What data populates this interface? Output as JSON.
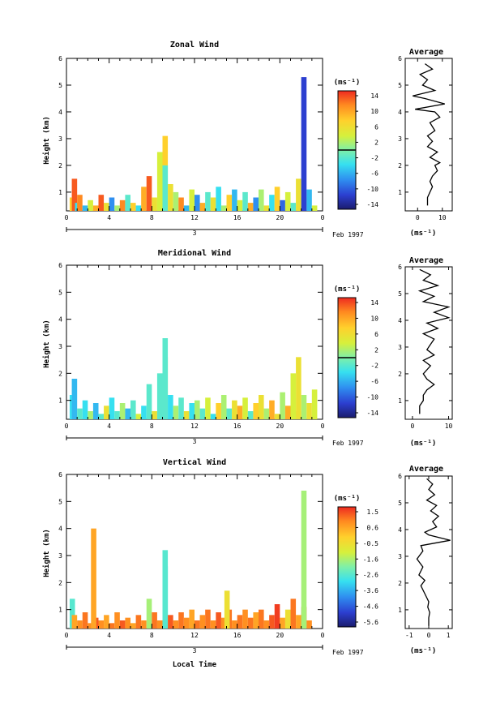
{
  "chart_data": [
    {
      "type": "heatmap",
      "title": "Zonal Wind",
      "xlabel": "",
      "ylabel": "Height (km)",
      "xticks": [
        "0",
        "4",
        "8",
        "12",
        "16",
        "20",
        "0"
      ],
      "xlim": [
        0,
        24
      ],
      "yticks": [
        "1",
        "2",
        "3",
        "4",
        "5",
        "6"
      ],
      "ylim": [
        0.3,
        6
      ],
      "date_label": "3",
      "month_label": "Feb 1997",
      "colorbar": {
        "unit": "(ms⁻¹)",
        "ticks": [
          "14",
          "10",
          "6",
          "2",
          "-2",
          "-6",
          "-10",
          "-14"
        ],
        "range": [
          -16,
          16
        ],
        "zero_line": 0
      },
      "average": {
        "title": "Average",
        "xlabel": "(ms⁻¹)",
        "xticks": [
          "0",
          "10"
        ],
        "xtick_values": [
          0,
          10
        ],
        "xlim": [
          -5,
          14
        ],
        "yticks": [
          "1",
          "2",
          "3",
          "4",
          "5",
          "6"
        ],
        "ylim": [
          0.3,
          6
        ],
        "profile": [
          [
            4,
            0.5
          ],
          [
            4,
            0.8
          ],
          [
            5,
            1.0
          ],
          [
            6,
            1.2
          ],
          [
            5,
            1.4
          ],
          [
            6,
            1.6
          ],
          [
            8,
            1.8
          ],
          [
            7,
            2.0
          ],
          [
            9,
            2.1
          ],
          [
            5,
            2.3
          ],
          [
            8,
            2.5
          ],
          [
            4,
            2.7
          ],
          [
            6,
            2.9
          ],
          [
            4,
            3.1
          ],
          [
            7,
            3.3
          ],
          [
            5,
            3.6
          ],
          [
            9,
            3.8
          ],
          [
            7,
            4.0
          ],
          [
            -1,
            4.1
          ],
          [
            11,
            4.3
          ],
          [
            3,
            4.5
          ],
          [
            -2,
            4.6
          ],
          [
            7,
            4.8
          ],
          [
            2,
            5.0
          ],
          [
            4,
            5.2
          ],
          [
            1,
            5.4
          ],
          [
            6,
            5.6
          ],
          [
            3,
            5.8
          ]
        ]
      },
      "cells": [
        [
          0.3,
          0.8,
          8
        ],
        [
          0.5,
          1.5,
          14
        ],
        [
          0.8,
          0.6,
          -4
        ],
        [
          1,
          0.9,
          12
        ],
        [
          1.5,
          0.5,
          -6
        ],
        [
          2,
          0.7,
          4
        ],
        [
          2.5,
          0.5,
          10
        ],
        [
          3,
          0.9,
          14
        ],
        [
          3.5,
          0.6,
          6
        ],
        [
          4,
          0.8,
          -8
        ],
        [
          4.5,
          0.5,
          2
        ],
        [
          5,
          0.7,
          12
        ],
        [
          5.5,
          0.9,
          -2
        ],
        [
          6,
          0.6,
          8
        ],
        [
          6.5,
          0.5,
          -4
        ],
        [
          7,
          1.2,
          10
        ],
        [
          7.5,
          1.6,
          14
        ],
        [
          8,
          0.8,
          6
        ],
        [
          8.5,
          2.5,
          4
        ],
        [
          9,
          3.1,
          8
        ],
        [
          9,
          2.0,
          -2
        ],
        [
          9.5,
          1.3,
          6
        ],
        [
          10,
          1.0,
          2
        ],
        [
          10.5,
          0.8,
          12
        ],
        [
          11,
          0.5,
          -6
        ],
        [
          11.5,
          1.1,
          4
        ],
        [
          12,
          0.9,
          -8
        ],
        [
          12.5,
          0.6,
          10
        ],
        [
          13,
          1.0,
          -2
        ],
        [
          13.5,
          0.8,
          6
        ],
        [
          14,
          1.2,
          -4
        ],
        [
          14.5,
          0.5,
          2
        ],
        [
          15,
          0.9,
          8
        ],
        [
          15.5,
          1.1,
          -6
        ],
        [
          16,
          0.7,
          4
        ],
        [
          16.5,
          1.0,
          -2
        ],
        [
          17,
          0.6,
          10
        ],
        [
          17.5,
          0.8,
          -8
        ],
        [
          18,
          1.1,
          2
        ],
        [
          18.5,
          0.5,
          6
        ],
        [
          19,
          0.9,
          -4
        ],
        [
          19.5,
          1.2,
          8
        ],
        [
          20,
          0.7,
          -10
        ],
        [
          20.5,
          1.0,
          4
        ],
        [
          21,
          0.6,
          -2
        ],
        [
          21.5,
          1.5,
          6
        ],
        [
          22,
          0.8,
          2
        ],
        [
          22.5,
          1.1,
          -6
        ],
        [
          23,
          0.5,
          4
        ],
        [
          22,
          5.3,
          -12
        ]
      ]
    },
    {
      "type": "heatmap",
      "title": "Meridional Wind",
      "xlabel": "",
      "ylabel": "Height (km)",
      "xticks": [
        "0",
        "4",
        "8",
        "12",
        "16",
        "20",
        "0"
      ],
      "xlim": [
        0,
        24
      ],
      "yticks": [
        "1",
        "2",
        "3",
        "4",
        "5",
        "6"
      ],
      "ylim": [
        0.3,
        6
      ],
      "date_label": "3",
      "month_label": "Feb 1997",
      "colorbar": {
        "unit": "(ms⁻¹)",
        "ticks": [
          "14",
          "10",
          "6",
          "2",
          "-2",
          "-6",
          "-10",
          "-14"
        ],
        "range": [
          -16,
          16
        ],
        "zero_line": 0
      },
      "average": {
        "title": "Average",
        "xlabel": "(ms⁻¹)",
        "xticks": [
          "0",
          "10"
        ],
        "xtick_values": [
          0,
          10
        ],
        "xlim": [
          -2,
          11
        ],
        "yticks": [
          "1",
          "2",
          "3",
          "4",
          "5",
          "6"
        ],
        "ylim": [
          0.3,
          6
        ],
        "profile": [
          [
            2,
            0.5
          ],
          [
            2,
            0.8
          ],
          [
            3,
            1.0
          ],
          [
            3,
            1.2
          ],
          [
            4,
            1.4
          ],
          [
            6,
            1.6
          ],
          [
            4,
            1.8
          ],
          [
            3,
            2.0
          ],
          [
            5,
            2.3
          ],
          [
            3,
            2.5
          ],
          [
            6,
            2.7
          ],
          [
            4,
            2.9
          ],
          [
            5,
            3.1
          ],
          [
            6,
            3.3
          ],
          [
            3,
            3.5
          ],
          [
            7,
            3.7
          ],
          [
            4,
            3.9
          ],
          [
            10,
            4.1
          ],
          [
            6,
            4.3
          ],
          [
            10,
            4.5
          ],
          [
            3,
            4.7
          ],
          [
            6,
            4.9
          ],
          [
            2,
            5.1
          ],
          [
            7,
            5.3
          ],
          [
            3,
            5.5
          ],
          [
            5,
            5.7
          ],
          [
            2,
            5.9
          ]
        ]
      },
      "cells": [
        [
          0.3,
          1.2,
          -4
        ],
        [
          0.5,
          1.8,
          -6
        ],
        [
          1,
          0.7,
          -2
        ],
        [
          1.5,
          1.0,
          -4
        ],
        [
          2,
          0.6,
          2
        ],
        [
          2.5,
          0.9,
          -6
        ],
        [
          3,
          0.5,
          -2
        ],
        [
          3.5,
          0.8,
          6
        ],
        [
          4,
          1.1,
          -4
        ],
        [
          4.5,
          0.6,
          -2
        ],
        [
          5,
          0.9,
          2
        ],
        [
          5.5,
          0.7,
          -6
        ],
        [
          6,
          1.0,
          -2
        ],
        [
          6.5,
          0.5,
          4
        ],
        [
          7,
          0.8,
          -4
        ],
        [
          7.5,
          1.6,
          -2
        ],
        [
          8,
          0.6,
          6
        ],
        [
          8.5,
          2.0,
          -2
        ],
        [
          9,
          2.6,
          4
        ],
        [
          9,
          3.3,
          -2
        ],
        [
          9.5,
          1.2,
          -4
        ],
        [
          10,
          0.8,
          2
        ],
        [
          10.5,
          1.1,
          -2
        ],
        [
          11,
          0.6,
          6
        ],
        [
          11.5,
          0.9,
          -4
        ],
        [
          12,
          1.0,
          2
        ],
        [
          12.5,
          0.7,
          -2
        ],
        [
          13,
          1.1,
          4
        ],
        [
          13.5,
          0.5,
          -4
        ],
        [
          14,
          0.9,
          8
        ],
        [
          14.5,
          1.2,
          2
        ],
        [
          15,
          0.7,
          -2
        ],
        [
          15.5,
          1.0,
          6
        ],
        [
          16,
          0.8,
          10
        ],
        [
          16.5,
          1.1,
          4
        ],
        [
          17,
          0.6,
          -2
        ],
        [
          17.5,
          0.9,
          8
        ],
        [
          18,
          1.2,
          6
        ],
        [
          18.5,
          0.7,
          2
        ],
        [
          19,
          1.0,
          10
        ],
        [
          19.5,
          0.5,
          6
        ],
        [
          20,
          1.3,
          2
        ],
        [
          20.5,
          0.8,
          10
        ],
        [
          21,
          1.1,
          4
        ],
        [
          21.5,
          0.6,
          8
        ],
        [
          22,
          1.2,
          2
        ],
        [
          22.5,
          0.9,
          6
        ],
        [
          23,
          1.4,
          4
        ],
        [
          21.5,
          2.6,
          6
        ],
        [
          21,
          2.0,
          4
        ]
      ]
    },
    {
      "type": "heatmap",
      "title": "Vertical Wind",
      "xlabel": "Local Time",
      "ylabel": "Height (km)",
      "xticks": [
        "0",
        "4",
        "8",
        "12",
        "16",
        "20",
        "0"
      ],
      "xlim": [
        0,
        24
      ],
      "yticks": [
        "1",
        "2",
        "3",
        "4",
        "5",
        "6"
      ],
      "ylim": [
        0.3,
        6
      ],
      "date_label": "3",
      "month_label": "Feb 1997",
      "colorbar": {
        "unit": "(ms⁻¹)",
        "ticks": [
          "1.5",
          "0.6",
          "-0.5",
          "-1.6",
          "-2.6",
          "-3.6",
          "-4.6",
          "-5.6"
        ],
        "range": [
          -6.1,
          2.0
        ],
        "zero_line": null
      },
      "average": {
        "title": "Average",
        "xlabel": "(ms⁻¹)",
        "xticks": [
          "-1",
          "0",
          "1"
        ],
        "xtick_values": [
          -1,
          0,
          1
        ],
        "xlim": [
          -1.2,
          1.2
        ],
        "yticks": [
          "1",
          "2",
          "3",
          "4",
          "5",
          "6"
        ],
        "ylim": [
          0.3,
          6
        ],
        "profile": [
          [
            0,
            0.4
          ],
          [
            0,
            0.7
          ],
          [
            0.05,
            0.9
          ],
          [
            -0.05,
            1.1
          ],
          [
            0,
            1.3
          ],
          [
            -0.2,
            1.6
          ],
          [
            -0.4,
            1.9
          ],
          [
            -0.2,
            2.1
          ],
          [
            -0.5,
            2.3
          ],
          [
            -0.3,
            2.6
          ],
          [
            -0.6,
            2.9
          ],
          [
            -0.3,
            3.2
          ],
          [
            -0.4,
            3.4
          ],
          [
            1.1,
            3.6
          ],
          [
            0,
            3.8
          ],
          [
            -0.2,
            3.9
          ],
          [
            0.4,
            4.1
          ],
          [
            0.2,
            4.3
          ],
          [
            0.5,
            4.5
          ],
          [
            0.1,
            4.7
          ],
          [
            0.4,
            4.9
          ],
          [
            -0.1,
            5.1
          ],
          [
            0.3,
            5.3
          ],
          [
            0,
            5.5
          ],
          [
            0.2,
            5.7
          ],
          [
            -0.1,
            5.9
          ]
        ]
      },
      "cells": [
        [
          0.3,
          1.4,
          -2.6
        ],
        [
          0.5,
          0.8,
          0.6
        ],
        [
          1,
          0.6,
          0.9
        ],
        [
          1.5,
          0.9,
          1.2
        ],
        [
          2,
          0.5,
          0.9
        ],
        [
          2.5,
          0.7,
          1.5
        ],
        [
          3,
          0.6,
          0.9
        ],
        [
          3.5,
          0.8,
          0.6
        ],
        [
          4,
          0.5,
          1.2
        ],
        [
          4.5,
          0.9,
          0.9
        ],
        [
          5,
          0.6,
          1.5
        ],
        [
          5.5,
          0.7,
          0.9
        ],
        [
          6,
          0.5,
          0.6
        ],
        [
          6.5,
          0.8,
          1.2
        ],
        [
          7,
          0.6,
          0.9
        ],
        [
          7.5,
          1.4,
          -1.6
        ],
        [
          8,
          0.9,
          1.2
        ],
        [
          8.5,
          0.6,
          0.9
        ],
        [
          9,
          2.6,
          -3.1
        ],
        [
          9,
          3.2,
          -2.6
        ],
        [
          9.5,
          0.8,
          1.5
        ],
        [
          10,
          0.6,
          0.9
        ],
        [
          10.5,
          0.9,
          1.2
        ],
        [
          11,
          0.7,
          0.9
        ],
        [
          11.5,
          1.0,
          0.6
        ],
        [
          12,
          0.6,
          1.2
        ],
        [
          12.5,
          0.8,
          0.9
        ],
        [
          13,
          1.0,
          1.2
        ],
        [
          13.5,
          0.6,
          0.9
        ],
        [
          14,
          0.9,
          1.5
        ],
        [
          14.5,
          0.7,
          0.9
        ],
        [
          15,
          1.0,
          1.2
        ],
        [
          15.5,
          0.6,
          0.9
        ],
        [
          16,
          0.8,
          1.2
        ],
        [
          16.5,
          1.0,
          0.9
        ],
        [
          17,
          0.7,
          1.2
        ],
        [
          17.5,
          0.9,
          0.6
        ],
        [
          18,
          1.0,
          1.2
        ],
        [
          18.5,
          0.6,
          0.9
        ],
        [
          19,
          0.8,
          1.5
        ],
        [
          19.5,
          1.2,
          1.8
        ],
        [
          20,
          0.7,
          0.6
        ],
        [
          20.5,
          1.0,
          -0.5
        ],
        [
          21,
          1.4,
          1.2
        ],
        [
          21.5,
          0.8,
          0.6
        ],
        [
          22,
          1.1,
          1.5
        ],
        [
          22.5,
          0.6,
          0.9
        ],
        [
          22,
          5.4,
          -1.6
        ],
        [
          2.3,
          4.0,
          0.6
        ],
        [
          14.8,
          1.7,
          -0.5
        ]
      ]
    }
  ]
}
